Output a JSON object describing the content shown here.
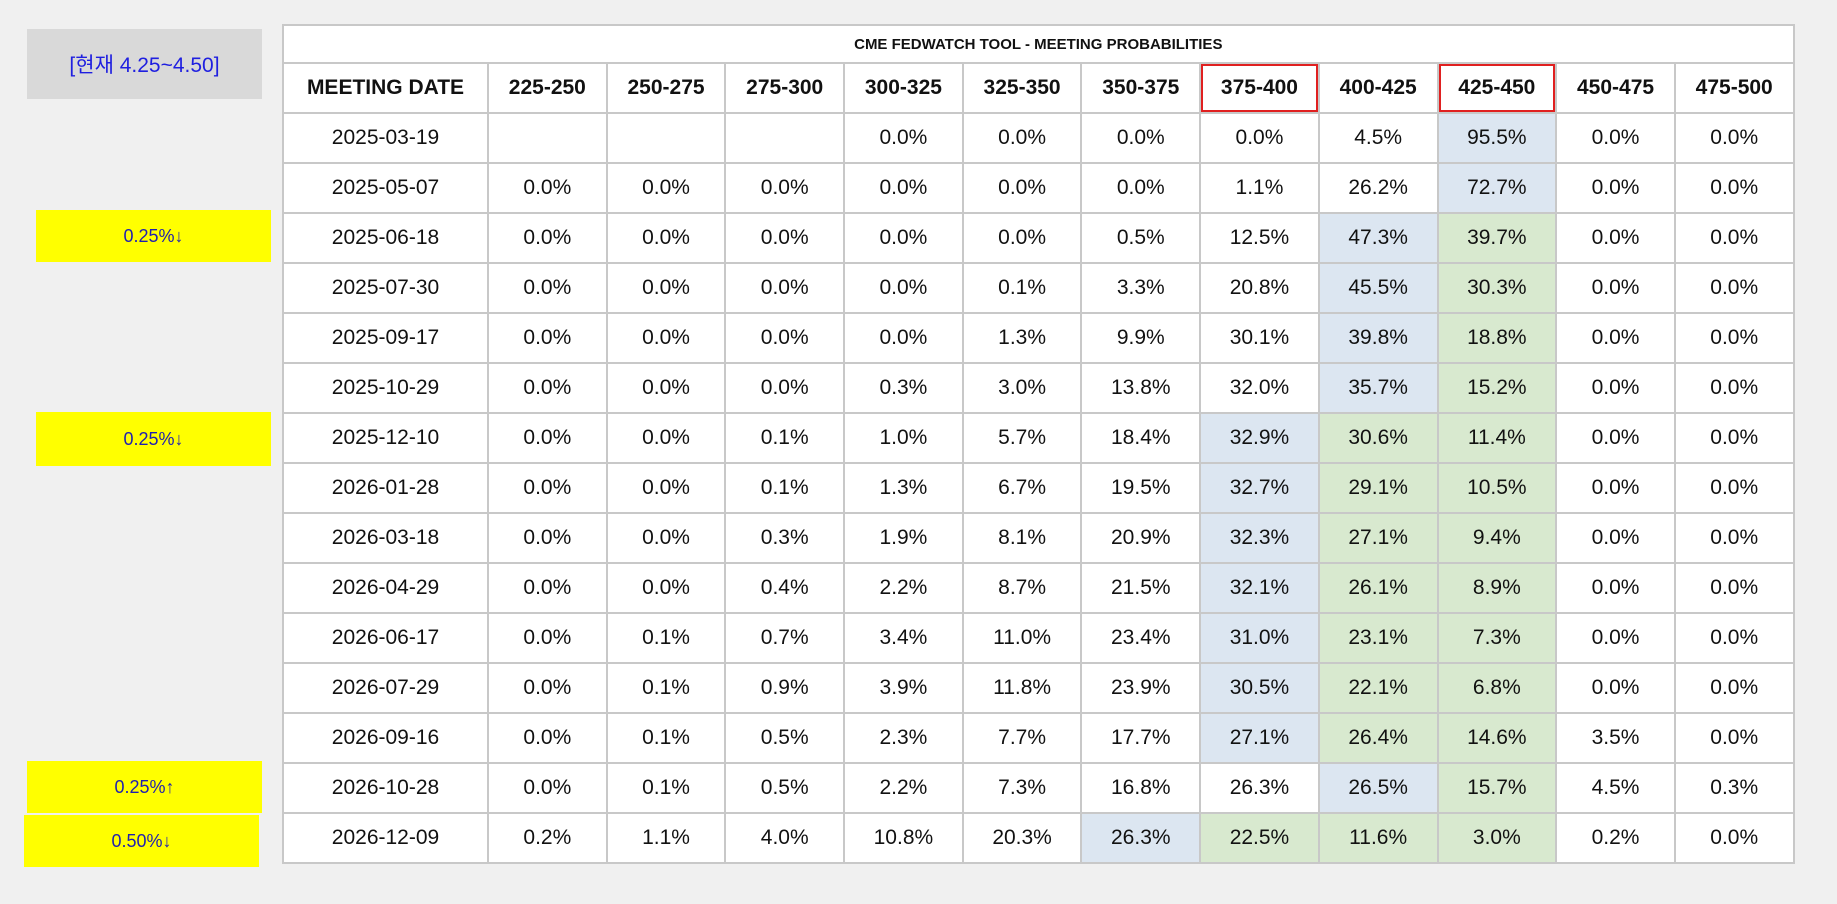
{
  "status_label": "[현재 4.25~4.50]",
  "notes": [
    "0.25%↓",
    "0.25%↓",
    "0.25%↑",
    "0.50%↓"
  ],
  "table": {
    "title": "CME FEDWATCH TOOL - MEETING PROBABILITIES",
    "date_header": "MEETING DATE",
    "columns": [
      "225-250",
      "250-275",
      "275-300",
      "300-325",
      "325-350",
      "350-375",
      "375-400",
      "400-425",
      "425-450",
      "450-475",
      "475-500"
    ],
    "highlighted_columns": [
      "375-400",
      "425-450"
    ],
    "colors": {
      "outline": "#e02020",
      "blue_cell": "#dce6f1",
      "green_cell": "#d8e9cf",
      "note_bg": "#ffff00"
    },
    "rows": [
      {
        "date": "2025-03-19",
        "values": [
          "",
          "",
          "",
          "0.0%",
          "0.0%",
          "0.0%",
          "0.0%",
          "4.5%",
          "95.5%",
          "0.0%",
          "0.0%"
        ],
        "blue": 8,
        "green": null
      },
      {
        "date": "2025-05-07",
        "values": [
          "0.0%",
          "0.0%",
          "0.0%",
          "0.0%",
          "0.0%",
          "0.0%",
          "1.1%",
          "26.2%",
          "72.7%",
          "0.0%",
          "0.0%"
        ],
        "blue": 8,
        "green": null
      },
      {
        "date": "2025-06-18",
        "values": [
          "0.0%",
          "0.0%",
          "0.0%",
          "0.0%",
          "0.0%",
          "0.5%",
          "12.5%",
          "47.3%",
          "39.7%",
          "0.0%",
          "0.0%"
        ],
        "blue": 7,
        "green": 8
      },
      {
        "date": "2025-07-30",
        "values": [
          "0.0%",
          "0.0%",
          "0.0%",
          "0.0%",
          "0.1%",
          "3.3%",
          "20.8%",
          "45.5%",
          "30.3%",
          "0.0%",
          "0.0%"
        ],
        "blue": 7,
        "green": 8
      },
      {
        "date": "2025-09-17",
        "values": [
          "0.0%",
          "0.0%",
          "0.0%",
          "0.0%",
          "1.3%",
          "9.9%",
          "30.1%",
          "39.8%",
          "18.8%",
          "0.0%",
          "0.0%"
        ],
        "blue": 7,
        "green": 8
      },
      {
        "date": "2025-10-29",
        "values": [
          "0.0%",
          "0.0%",
          "0.0%",
          "0.3%",
          "3.0%",
          "13.8%",
          "32.0%",
          "35.7%",
          "15.2%",
          "0.0%",
          "0.0%"
        ],
        "blue": 7,
        "green": 8
      },
      {
        "date": "2025-12-10",
        "values": [
          "0.0%",
          "0.0%",
          "0.1%",
          "1.0%",
          "5.7%",
          "18.4%",
          "32.9%",
          "30.6%",
          "11.4%",
          "0.0%",
          "0.0%"
        ],
        "blue": 6,
        "green": [
          7,
          8
        ]
      },
      {
        "date": "2026-01-28",
        "values": [
          "0.0%",
          "0.0%",
          "0.1%",
          "1.3%",
          "6.7%",
          "19.5%",
          "32.7%",
          "29.1%",
          "10.5%",
          "0.0%",
          "0.0%"
        ],
        "blue": 6,
        "green": [
          7,
          8
        ]
      },
      {
        "date": "2026-03-18",
        "values": [
          "0.0%",
          "0.0%",
          "0.3%",
          "1.9%",
          "8.1%",
          "20.9%",
          "32.3%",
          "27.1%",
          "9.4%",
          "0.0%",
          "0.0%"
        ],
        "blue": 6,
        "green": [
          7,
          8
        ]
      },
      {
        "date": "2026-04-29",
        "values": [
          "0.0%",
          "0.0%",
          "0.4%",
          "2.2%",
          "8.7%",
          "21.5%",
          "32.1%",
          "26.1%",
          "8.9%",
          "0.0%",
          "0.0%"
        ],
        "blue": 6,
        "green": [
          7,
          8
        ]
      },
      {
        "date": "2026-06-17",
        "values": [
          "0.0%",
          "0.1%",
          "0.7%",
          "3.4%",
          "11.0%",
          "23.4%",
          "31.0%",
          "23.1%",
          "7.3%",
          "0.0%",
          "0.0%"
        ],
        "blue": 6,
        "green": [
          7,
          8
        ]
      },
      {
        "date": "2026-07-29",
        "values": [
          "0.0%",
          "0.1%",
          "0.9%",
          "3.9%",
          "11.8%",
          "23.9%",
          "30.5%",
          "22.1%",
          "6.8%",
          "0.0%",
          "0.0%"
        ],
        "blue": 6,
        "green": [
          7,
          8
        ]
      },
      {
        "date": "2026-09-16",
        "values": [
          "0.0%",
          "0.1%",
          "0.5%",
          "2.3%",
          "7.7%",
          "17.7%",
          "27.1%",
          "26.4%",
          "14.6%",
          "3.5%",
          "0.0%"
        ],
        "blue": 6,
        "green": [
          7,
          8
        ]
      },
      {
        "date": "2026-10-28",
        "values": [
          "0.0%",
          "0.1%",
          "0.5%",
          "2.2%",
          "7.3%",
          "16.8%",
          "26.3%",
          "26.5%",
          "15.7%",
          "4.5%",
          "0.3%"
        ],
        "blue": 7,
        "green": 8
      },
      {
        "date": "2026-12-09",
        "values": [
          "0.2%",
          "1.1%",
          "4.0%",
          "10.8%",
          "20.3%",
          "26.3%",
          "22.5%",
          "11.6%",
          "3.0%",
          "0.2%",
          "0.0%"
        ],
        "blue": 5,
        "green": [
          6,
          7,
          8
        ]
      }
    ]
  }
}
